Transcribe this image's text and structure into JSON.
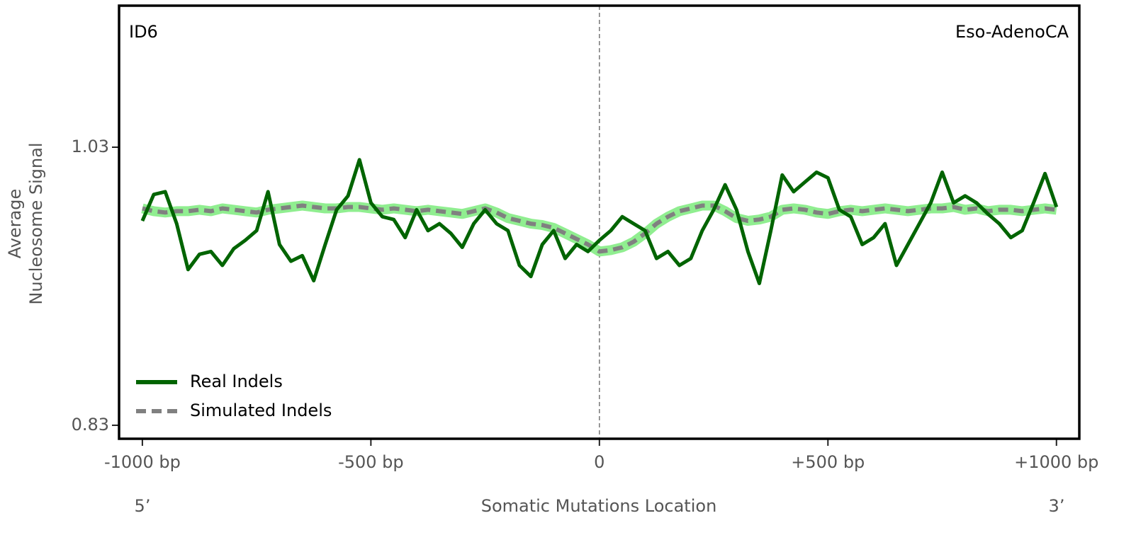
{
  "chart_data": {
    "type": "line",
    "annotations": {
      "top_left": "ID6",
      "top_right": "Eso-AdenoCA",
      "left_end": "5’",
      "right_end": "3’"
    },
    "xlabel": "Somatic Mutations Location",
    "ylabel_lines": [
      "Average",
      "Nucleosome Signal"
    ],
    "x": [
      -1000,
      -975,
      -950,
      -925,
      -900,
      -875,
      -850,
      -825,
      -800,
      -775,
      -750,
      -725,
      -700,
      -675,
      -650,
      -625,
      -600,
      -575,
      -550,
      -525,
      -500,
      -475,
      -450,
      -425,
      -400,
      -375,
      -350,
      -325,
      -300,
      -275,
      -250,
      -225,
      -200,
      -175,
      -150,
      -125,
      -100,
      -75,
      -50,
      -25,
      0,
      25,
      50,
      75,
      100,
      125,
      150,
      175,
      200,
      225,
      250,
      275,
      300,
      325,
      350,
      375,
      400,
      425,
      450,
      475,
      500,
      525,
      550,
      575,
      600,
      625,
      650,
      675,
      700,
      725,
      750,
      775,
      800,
      825,
      850,
      875,
      900,
      925,
      950,
      975,
      1000
    ],
    "series": [
      {
        "name": "Real Indels",
        "color": "#006400",
        "dashed": false,
        "values": [
          0.977,
          0.996,
          0.998,
          0.975,
          0.942,
          0.953,
          0.955,
          0.945,
          0.957,
          0.963,
          0.97,
          0.998,
          0.96,
          0.948,
          0.952,
          0.934,
          0.96,
          0.985,
          0.995,
          1.021,
          0.99,
          0.98,
          0.978,
          0.965,
          0.985,
          0.97,
          0.975,
          0.968,
          0.958,
          0.975,
          0.985,
          0.975,
          0.97,
          0.945,
          0.937,
          0.96,
          0.97,
          0.95,
          0.96,
          0.955,
          0.963,
          0.97,
          0.98,
          0.975,
          0.97,
          0.95,
          0.955,
          0.945,
          0.95,
          0.97,
          0.985,
          1.003,
          0.985,
          0.955,
          0.932,
          0.97,
          1.01,
          0.998,
          1.005,
          1.012,
          1.008,
          0.985,
          0.98,
          0.96,
          0.965,
          0.975,
          0.945,
          0.96,
          0.975,
          0.99,
          1.012,
          0.99,
          0.995,
          0.99,
          0.982,
          0.975,
          0.965,
          0.97,
          0.99,
          1.011,
          0.987
        ]
      },
      {
        "name": "Simulated Indels",
        "color": "#808080",
        "dashed": true,
        "band_color": "#90ee90",
        "values": [
          0.986,
          0.984,
          0.983,
          0.984,
          0.984,
          0.985,
          0.984,
          0.986,
          0.985,
          0.984,
          0.983,
          0.985,
          0.986,
          0.987,
          0.988,
          0.987,
          0.986,
          0.986,
          0.987,
          0.987,
          0.986,
          0.985,
          0.986,
          0.985,
          0.984,
          0.985,
          0.984,
          0.983,
          0.982,
          0.984,
          0.986,
          0.983,
          0.979,
          0.977,
          0.975,
          0.974,
          0.972,
          0.968,
          0.964,
          0.96,
          0.955,
          0.956,
          0.958,
          0.962,
          0.968,
          0.975,
          0.98,
          0.984,
          0.986,
          0.988,
          0.988,
          0.984,
          0.979,
          0.977,
          0.978,
          0.98,
          0.985,
          0.986,
          0.985,
          0.983,
          0.982,
          0.984,
          0.985,
          0.984,
          0.985,
          0.986,
          0.985,
          0.984,
          0.985,
          0.986,
          0.986,
          0.987,
          0.985,
          0.986,
          0.984,
          0.985,
          0.985,
          0.984,
          0.985,
          0.986,
          0.985
        ]
      }
    ],
    "xlim": [
      -1051,
      1050
    ],
    "ylim": [
      0.8203,
      1.1318
    ],
    "xticks": [
      {
        "value": -1000,
        "label": "-1000 bp"
      },
      {
        "value": -500,
        "label": "-500 bp"
      },
      0,
      {
        "value": 500,
        "label": "+500 bp"
      },
      {
        "value": 1000,
        "label": "+1000 bp"
      }
    ],
    "yticks": [
      0.83,
      1.03
    ],
    "vline": 0,
    "legend": "lower left"
  }
}
